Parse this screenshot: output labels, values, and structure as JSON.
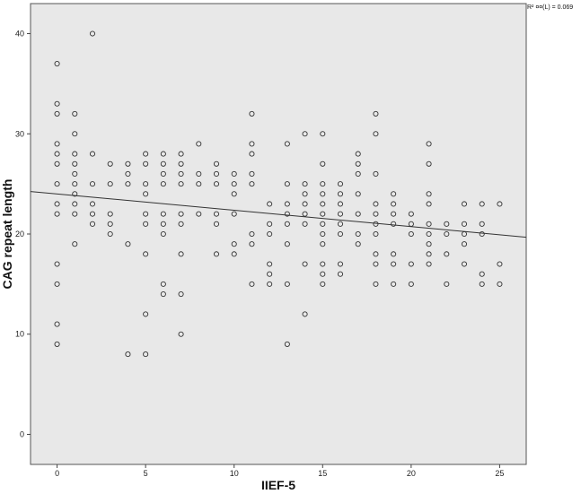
{
  "chart_data": {
    "type": "scatter",
    "xlabel": "IIEF-5",
    "ylabel": "CAG repeat length",
    "xlim": [
      -1.5,
      26.5
    ],
    "ylim": [
      -3,
      43
    ],
    "xticks": [
      0,
      5,
      10,
      15,
      20,
      25
    ],
    "yticks": [
      0,
      10,
      20,
      30,
      40
    ],
    "grid": false,
    "background": "#e8e8e8",
    "marker_color": "#333333",
    "fit_line": {
      "intercept": 24.0,
      "slope": -0.163,
      "color": "#333333"
    },
    "fit_label": "R² ¤¤(L) = 0.069",
    "points": [
      [
        0,
        37
      ],
      [
        0,
        33
      ],
      [
        0,
        32
      ],
      [
        0,
        29
      ],
      [
        0,
        28
      ],
      [
        0,
        27
      ],
      [
        0,
        25
      ],
      [
        0,
        23
      ],
      [
        0,
        22
      ],
      [
        0,
        17
      ],
      [
        0,
        15
      ],
      [
        0,
        11
      ],
      [
        0,
        9
      ],
      [
        1,
        32
      ],
      [
        1,
        30
      ],
      [
        1,
        28
      ],
      [
        1,
        27
      ],
      [
        1,
        26
      ],
      [
        1,
        25
      ],
      [
        1,
        24
      ],
      [
        1,
        23
      ],
      [
        1,
        22
      ],
      [
        1,
        19
      ],
      [
        2,
        40
      ],
      [
        2,
        28
      ],
      [
        2,
        25
      ],
      [
        2,
        23
      ],
      [
        2,
        22
      ],
      [
        2,
        21
      ],
      [
        3,
        27
      ],
      [
        3,
        25
      ],
      [
        3,
        22
      ],
      [
        3,
        21
      ],
      [
        3,
        20
      ],
      [
        4,
        27
      ],
      [
        4,
        26
      ],
      [
        4,
        25
      ],
      [
        4,
        19
      ],
      [
        4,
        8
      ],
      [
        5,
        28
      ],
      [
        5,
        27
      ],
      [
        5,
        25
      ],
      [
        5,
        24
      ],
      [
        5,
        22
      ],
      [
        5,
        21
      ],
      [
        5,
        18
      ],
      [
        5,
        12
      ],
      [
        5,
        8
      ],
      [
        6,
        28
      ],
      [
        6,
        27
      ],
      [
        6,
        26
      ],
      [
        6,
        25
      ],
      [
        6,
        22
      ],
      [
        6,
        21
      ],
      [
        6,
        20
      ],
      [
        6,
        15
      ],
      [
        6,
        14
      ],
      [
        7,
        28
      ],
      [
        7,
        27
      ],
      [
        7,
        26
      ],
      [
        7,
        25
      ],
      [
        7,
        22
      ],
      [
        7,
        21
      ],
      [
        7,
        18
      ],
      [
        7,
        14
      ],
      [
        7,
        10
      ],
      [
        8,
        29
      ],
      [
        8,
        26
      ],
      [
        8,
        25
      ],
      [
        8,
        22
      ],
      [
        9,
        27
      ],
      [
        9,
        26
      ],
      [
        9,
        25
      ],
      [
        9,
        22
      ],
      [
        9,
        21
      ],
      [
        9,
        18
      ],
      [
        10,
        26
      ],
      [
        10,
        25
      ],
      [
        10,
        24
      ],
      [
        10,
        22
      ],
      [
        10,
        19
      ],
      [
        10,
        18
      ],
      [
        11,
        32
      ],
      [
        11,
        29
      ],
      [
        11,
        28
      ],
      [
        11,
        26
      ],
      [
        11,
        25
      ],
      [
        11,
        20
      ],
      [
        11,
        19
      ],
      [
        11,
        15
      ],
      [
        12,
        23
      ],
      [
        12,
        21
      ],
      [
        12,
        20
      ],
      [
        12,
        17
      ],
      [
        12,
        16
      ],
      [
        12,
        15
      ],
      [
        13,
        29
      ],
      [
        13,
        25
      ],
      [
        13,
        23
      ],
      [
        13,
        22
      ],
      [
        13,
        21
      ],
      [
        13,
        19
      ],
      [
        13,
        15
      ],
      [
        13,
        9
      ],
      [
        14,
        30
      ],
      [
        14,
        25
      ],
      [
        14,
        24
      ],
      [
        14,
        23
      ],
      [
        14,
        22
      ],
      [
        14,
        21
      ],
      [
        14,
        17
      ],
      [
        14,
        12
      ],
      [
        15,
        30
      ],
      [
        15,
        27
      ],
      [
        15,
        25
      ],
      [
        15,
        24
      ],
      [
        15,
        23
      ],
      [
        15,
        22
      ],
      [
        15,
        21
      ],
      [
        15,
        20
      ],
      [
        15,
        19
      ],
      [
        15,
        17
      ],
      [
        15,
        16
      ],
      [
        15,
        15
      ],
      [
        16,
        25
      ],
      [
        16,
        24
      ],
      [
        16,
        23
      ],
      [
        16,
        22
      ],
      [
        16,
        21
      ],
      [
        16,
        20
      ],
      [
        16,
        17
      ],
      [
        16,
        16
      ],
      [
        17,
        28
      ],
      [
        17,
        27
      ],
      [
        17,
        26
      ],
      [
        17,
        24
      ],
      [
        17,
        22
      ],
      [
        17,
        20
      ],
      [
        17,
        19
      ],
      [
        18,
        32
      ],
      [
        18,
        30
      ],
      [
        18,
        26
      ],
      [
        18,
        23
      ],
      [
        18,
        22
      ],
      [
        18,
        21
      ],
      [
        18,
        20
      ],
      [
        18,
        18
      ],
      [
        18,
        17
      ],
      [
        18,
        15
      ],
      [
        19,
        24
      ],
      [
        19,
        23
      ],
      [
        19,
        22
      ],
      [
        19,
        21
      ],
      [
        19,
        18
      ],
      [
        19,
        17
      ],
      [
        19,
        15
      ],
      [
        20,
        22
      ],
      [
        20,
        21
      ],
      [
        20,
        20
      ],
      [
        20,
        17
      ],
      [
        20,
        15
      ],
      [
        21,
        29
      ],
      [
        21,
        27
      ],
      [
        21,
        24
      ],
      [
        21,
        23
      ],
      [
        21,
        21
      ],
      [
        21,
        20
      ],
      [
        21,
        19
      ],
      [
        21,
        18
      ],
      [
        21,
        17
      ],
      [
        22,
        21
      ],
      [
        22,
        20
      ],
      [
        22,
        18
      ],
      [
        22,
        15
      ],
      [
        23,
        23
      ],
      [
        23,
        21
      ],
      [
        23,
        20
      ],
      [
        23,
        19
      ],
      [
        23,
        17
      ],
      [
        24,
        23
      ],
      [
        24,
        21
      ],
      [
        24,
        20
      ],
      [
        24,
        16
      ],
      [
        24,
        15
      ],
      [
        25,
        23
      ],
      [
        25,
        17
      ],
      [
        25,
        15
      ]
    ]
  }
}
